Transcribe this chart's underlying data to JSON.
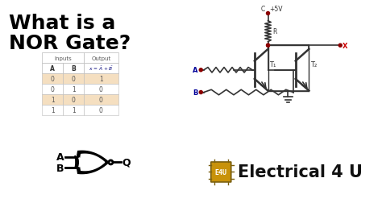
{
  "title_line1": "What is a",
  "title_line2": "NOR Gate?",
  "title_color": "#000000",
  "title_fontsize": 18,
  "bg_color": "#ffffff",
  "table_data": [
    [
      0,
      0,
      1
    ],
    [
      0,
      1,
      0
    ],
    [
      1,
      0,
      0
    ],
    [
      1,
      1,
      0
    ]
  ],
  "table_row_bg_odd": "#f5dfc0",
  "table_row_bg_even": "#ffffff",
  "elec4u_text": "Electrical 4 U",
  "elec4u_color": "#111111",
  "elec4u_fontsize": 15,
  "chip_face": "#c8920a",
  "chip_edge": "#7a6010",
  "dot_color": "#8b0000",
  "label_blue": "#000099",
  "circuit_color": "#333333",
  "x_color": "#cc0000"
}
